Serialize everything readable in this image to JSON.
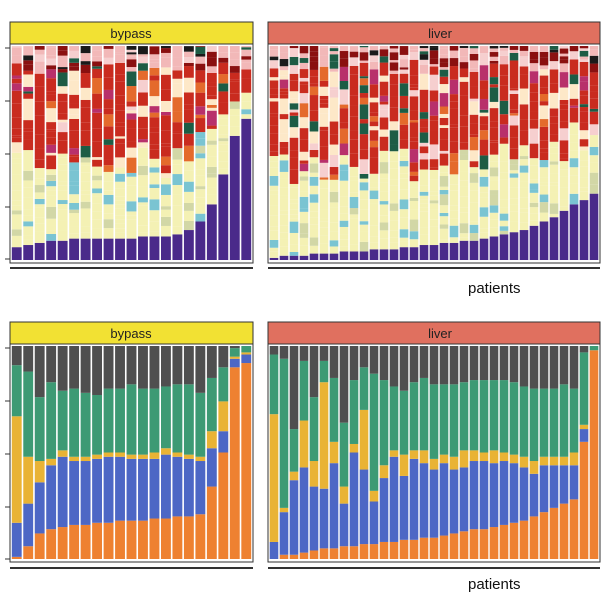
{
  "figure": {
    "xlabel": "patients"
  },
  "colors": {
    "strip_bypass": "#f2e133",
    "strip_liver": "#e0705f",
    "panel_border": "#333333"
  },
  "chart_data": [
    {
      "type": "bar",
      "stacked": true,
      "normalized": true,
      "panel": "bypass",
      "row": "top",
      "n_bars": 21,
      "xlabel": "",
      "ylim": [
        0,
        1
      ],
      "palette": [
        "#4a2a8a",
        "#fde8c8",
        "#f4f1b4",
        "#d2d7a6",
        "#e46a2c",
        "#c92b1f",
        "#f6cfcf",
        "#f2b8b8",
        "#8a1010",
        "#1d5c45",
        "#7ac4d2",
        "#b8306b",
        "#3a3a3a",
        "#1a1a1a"
      ],
      "base_fraction": [
        0.06,
        0.07,
        0.08,
        0.09,
        0.09,
        0.1,
        0.1,
        0.1,
        0.1,
        0.1,
        0.1,
        0.11,
        0.11,
        0.11,
        0.12,
        0.14,
        0.18,
        0.26,
        0.4,
        0.58,
        0.66
      ]
    },
    {
      "type": "bar",
      "stacked": true,
      "normalized": true,
      "panel": "liver",
      "row": "top",
      "n_bars": 33,
      "xlabel": "patients",
      "ylim": [
        0,
        1
      ],
      "palette": [
        "#4a2a8a",
        "#fde8c8",
        "#f4f1b4",
        "#d2d7a6",
        "#e46a2c",
        "#c92b1f",
        "#f6cfcf",
        "#f2b8b8",
        "#8a1010",
        "#1d5c45",
        "#7ac4d2",
        "#b8306b",
        "#3a3a3a",
        "#1a1a1a"
      ],
      "base_fraction": [
        0.01,
        0.02,
        0.02,
        0.02,
        0.03,
        0.03,
        0.03,
        0.04,
        0.04,
        0.04,
        0.05,
        0.05,
        0.05,
        0.06,
        0.06,
        0.07,
        0.07,
        0.08,
        0.08,
        0.09,
        0.09,
        0.1,
        0.11,
        0.12,
        0.13,
        0.14,
        0.16,
        0.18,
        0.2,
        0.23,
        0.26,
        0.28,
        0.31
      ]
    },
    {
      "type": "bar",
      "stacked": true,
      "normalized": true,
      "panel": "bypass",
      "row": "bottom",
      "n_bars": 21,
      "xlabel": "",
      "ylim": [
        0,
        1
      ],
      "series_colors": [
        "#ee8131",
        "#4d67c5",
        "#e9b335",
        "#3d9a74",
        "#4f4f4f"
      ],
      "orange": [
        0.01,
        0.06,
        0.12,
        0.14,
        0.15,
        0.16,
        0.16,
        0.17,
        0.17,
        0.18,
        0.18,
        0.18,
        0.19,
        0.19,
        0.2,
        0.2,
        0.21,
        0.34,
        0.5,
        0.9,
        0.92
      ],
      "blue": [
        0.16,
        0.2,
        0.24,
        0.3,
        0.33,
        0.3,
        0.3,
        0.3,
        0.31,
        0.3,
        0.29,
        0.29,
        0.28,
        0.3,
        0.28,
        0.27,
        0.25,
        0.18,
        0.1,
        0.04,
        0.04
      ],
      "yellow": [
        0.5,
        0.22,
        0.1,
        0.03,
        0.03,
        0.02,
        0.02,
        0.02,
        0.02,
        0.02,
        0.02,
        0.02,
        0.03,
        0.03,
        0.02,
        0.02,
        0.02,
        0.08,
        0.14,
        0.01,
        0.01
      ],
      "green": [
        0.24,
        0.4,
        0.3,
        0.36,
        0.28,
        0.32,
        0.3,
        0.28,
        0.3,
        0.3,
        0.33,
        0.31,
        0.3,
        0.29,
        0.32,
        0.33,
        0.3,
        0.25,
        0.16,
        0.04,
        0.03
      ],
      "gray": [
        0.09,
        0.12,
        0.24,
        0.17,
        0.21,
        0.2,
        0.22,
        0.23,
        0.2,
        0.2,
        0.18,
        0.2,
        0.2,
        0.19,
        0.18,
        0.18,
        0.22,
        0.15,
        0.1,
        0.01,
        0.0
      ]
    },
    {
      "type": "bar",
      "stacked": true,
      "normalized": true,
      "panel": "liver",
      "row": "bottom",
      "n_bars": 33,
      "xlabel": "patients",
      "ylim": [
        0,
        1
      ],
      "series_colors": [
        "#ee8131",
        "#4d67c5",
        "#e9b335",
        "#3d9a74",
        "#4f4f4f"
      ],
      "orange": [
        0.0,
        0.02,
        0.02,
        0.03,
        0.04,
        0.05,
        0.05,
        0.06,
        0.06,
        0.07,
        0.07,
        0.08,
        0.08,
        0.09,
        0.09,
        0.1,
        0.1,
        0.11,
        0.12,
        0.13,
        0.14,
        0.14,
        0.15,
        0.16,
        0.17,
        0.18,
        0.2,
        0.22,
        0.24,
        0.26,
        0.28,
        0.55,
        0.98
      ],
      "blue": [
        0.08,
        0.2,
        0.35,
        0.4,
        0.3,
        0.28,
        0.4,
        0.2,
        0.44,
        0.35,
        0.2,
        0.3,
        0.4,
        0.3,
        0.38,
        0.35,
        0.32,
        0.34,
        0.3,
        0.3,
        0.32,
        0.32,
        0.3,
        0.3,
        0.28,
        0.25,
        0.2,
        0.22,
        0.2,
        0.18,
        0.16,
        0.06,
        0.0
      ],
      "yellow": [
        0.6,
        0.02,
        0.04,
        0.22,
        0.12,
        0.5,
        0.1,
        0.08,
        0.04,
        0.28,
        0.05,
        0.06,
        0.03,
        0.1,
        0.04,
        0.06,
        0.05,
        0.04,
        0.06,
        0.08,
        0.05,
        0.04,
        0.06,
        0.04,
        0.04,
        0.05,
        0.06,
        0.04,
        0.04,
        0.04,
        0.06,
        0.02,
        0.0
      ],
      "green": [
        0.28,
        0.7,
        0.2,
        0.28,
        0.3,
        0.1,
        0.3,
        0.3,
        0.3,
        0.2,
        0.55,
        0.4,
        0.3,
        0.3,
        0.32,
        0.34,
        0.35,
        0.33,
        0.34,
        0.32,
        0.33,
        0.34,
        0.33,
        0.34,
        0.34,
        0.33,
        0.34,
        0.32,
        0.32,
        0.34,
        0.3,
        0.34,
        0.02
      ],
      "gray": [
        0.04,
        0.06,
        0.39,
        0.07,
        0.24,
        0.07,
        0.15,
        0.36,
        0.16,
        0.1,
        0.13,
        0.16,
        0.19,
        0.21,
        0.17,
        0.15,
        0.18,
        0.18,
        0.18,
        0.17,
        0.16,
        0.16,
        0.16,
        0.16,
        0.17,
        0.19,
        0.2,
        0.2,
        0.2,
        0.18,
        0.2,
        0.03,
        0.0
      ]
    }
  ],
  "panels": {
    "top_left": {
      "strip": "bypass"
    },
    "top_right": {
      "strip": "liver"
    },
    "bottom_left": {
      "strip": "bypass"
    },
    "bottom_right": {
      "strip": "liver"
    }
  }
}
